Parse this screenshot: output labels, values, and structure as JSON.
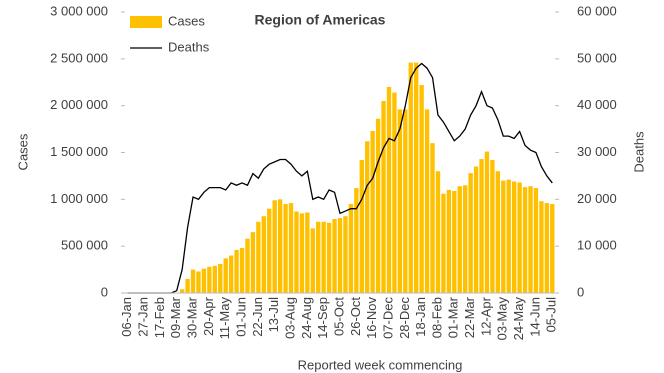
{
  "chart_data": {
    "type": "bar-line",
    "title": "Region of Americas",
    "ylabel": "Cases",
    "y2label": "Deaths",
    "xlabel": "Reported week commencing",
    "categories": [
      "06-Jan",
      null,
      null,
      "27-Jan",
      null,
      null,
      "17-Feb",
      null,
      null,
      "09-Mar",
      null,
      null,
      "30-Mar",
      null,
      null,
      "20-Apr",
      null,
      null,
      "11-May",
      null,
      null,
      "01-Jun",
      null,
      null,
      "22-Jun",
      null,
      null,
      "13-Jul",
      null,
      null,
      "03-Aug",
      null,
      null,
      "24-Aug",
      null,
      null,
      "14-Sep",
      null,
      null,
      "05-Oct",
      null,
      null,
      "26-Oct",
      null,
      null,
      "16-Nov",
      null,
      null,
      "07-Dec",
      null,
      null,
      "28-Dec",
      null,
      null,
      "18-Jan",
      null,
      null,
      "08-Feb",
      null,
      null,
      "01-Mar",
      null,
      null,
      "22-Mar",
      null,
      null,
      "12-Apr",
      null,
      null,
      "03-May",
      null,
      null,
      "24-May",
      null,
      null,
      "14-Jun",
      null,
      null,
      "05-Jul"
    ],
    "series": [
      {
        "name": "Cases",
        "color": "#ffc000",
        "values": [
          0,
          0,
          0,
          0,
          0,
          0,
          0,
          0,
          0,
          5000,
          40000,
          150000,
          250000,
          230000,
          260000,
          280000,
          290000,
          310000,
          370000,
          400000,
          460000,
          480000,
          580000,
          650000,
          760000,
          820000,
          900000,
          990000,
          1000000,
          950000,
          960000,
          870000,
          850000,
          860000,
          690000,
          760000,
          760000,
          750000,
          790000,
          800000,
          820000,
          950000,
          1120000,
          1420000,
          1620000,
          1730000,
          1860000,
          2050000,
          2200000,
          2140000,
          1960000,
          1960000,
          2460000,
          2460000,
          2220000,
          1960000,
          1600000,
          1300000,
          1060000,
          1100000,
          1090000,
          1140000,
          1150000,
          1280000,
          1350000,
          1430000,
          1510000,
          1420000,
          1300000,
          1200000,
          1210000,
          1190000,
          1180000,
          1130000,
          1140000,
          1120000,
          980000,
          960000,
          950000
        ]
      },
      {
        "name": "Deaths",
        "color": "#000000",
        "axis": "y2",
        "values": [
          0,
          0,
          0,
          0,
          0,
          0,
          0,
          0,
          0,
          500,
          5000,
          14000,
          20500,
          20000,
          21500,
          22500,
          22500,
          22500,
          22000,
          23500,
          23000,
          23500,
          23000,
          25500,
          24500,
          26500,
          27500,
          28000,
          28500,
          28500,
          27500,
          26000,
          25000,
          26000,
          20000,
          20500,
          20000,
          22000,
          21500,
          17000,
          17500,
          18000,
          18000,
          20000,
          23000,
          24500,
          28000,
          31000,
          33000,
          32500,
          35000,
          40000,
          46000,
          48000,
          49000,
          48000,
          46000,
          38000,
          36500,
          34500,
          32500,
          33500,
          35000,
          38000,
          40000,
          43000,
          40000,
          39500,
          37000,
          33500,
          33500,
          33000,
          34500,
          31500,
          30500,
          30000,
          27000,
          25000,
          23500
        ]
      }
    ],
    "ylim": [
      0,
      3000000
    ],
    "yticks": [
      0,
      {
        "value": 500000,
        "label": "500 000"
      },
      {
        "value": 1000000,
        "label": "1 000 000"
      },
      {
        "value": 1500000,
        "label": "1 500 000"
      },
      {
        "value": 2000000,
        "label": "2 000 000"
      },
      {
        "value": 2500000,
        "label": "2 500 000"
      },
      {
        "value": 3000000,
        "label": "3 000 000"
      }
    ],
    "y2lim": [
      0,
      60000
    ],
    "y2ticks": [
      0,
      {
        "value": 10000,
        "label": "10 000"
      },
      {
        "value": 20000,
        "label": "20 000"
      },
      {
        "value": 30000,
        "label": "30 000"
      },
      {
        "value": 40000,
        "label": "40 000"
      },
      {
        "value": 50000,
        "label": "50 000"
      },
      {
        "value": 60000,
        "label": "60 000"
      }
    ]
  }
}
